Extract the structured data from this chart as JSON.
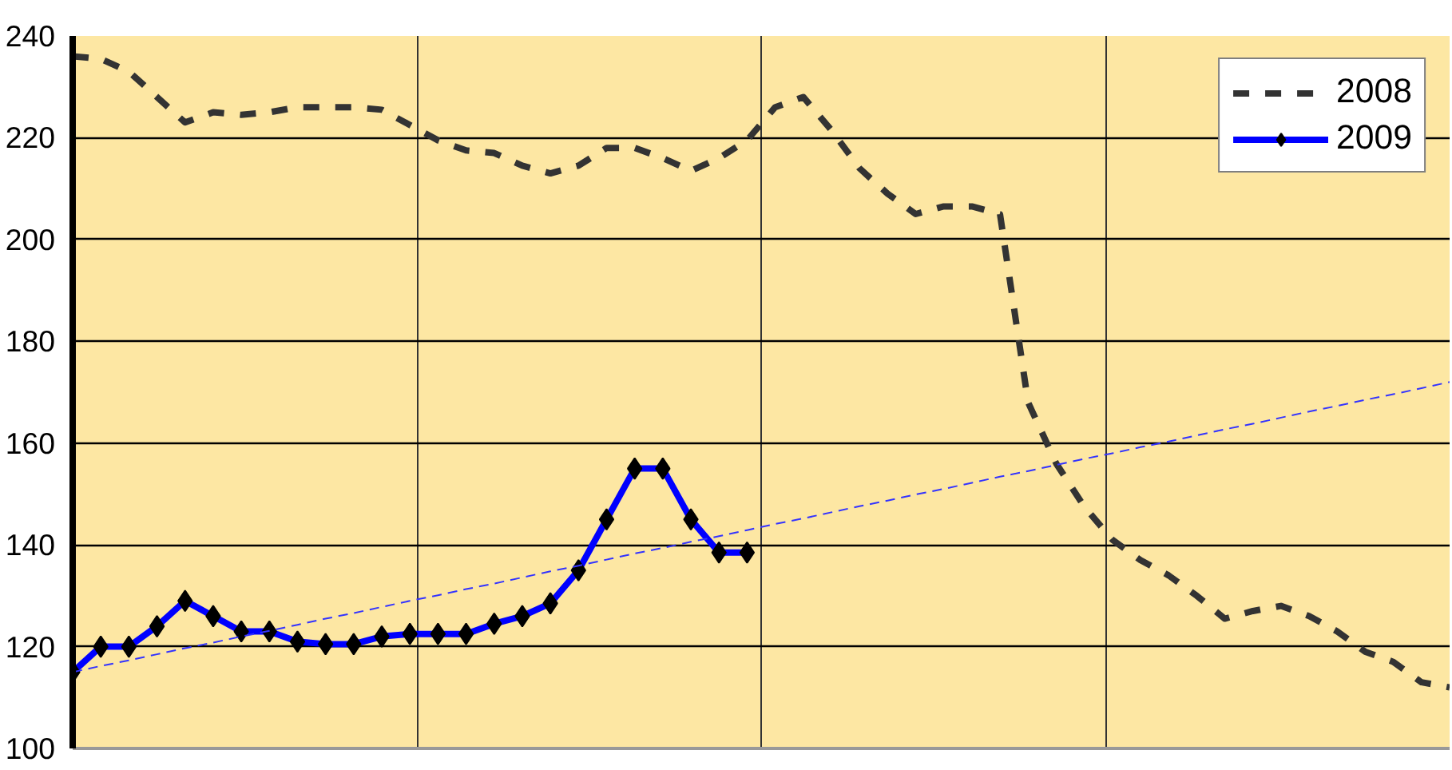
{
  "chart_data": {
    "type": "line",
    "tick_labels": "y",
    "grid": true,
    "legend": "top right",
    "categories": [
      null,
      null,
      null,
      null,
      null,
      null,
      null,
      null,
      null,
      null,
      null,
      null,
      null,
      null,
      null,
      null,
      null,
      null,
      null,
      null,
      null,
      null,
      null,
      null,
      null,
      null,
      null,
      null,
      null,
      null,
      null,
      null,
      null,
      null,
      null,
      null,
      null,
      null,
      null,
      null,
      null,
      null,
      null,
      null,
      null,
      null,
      null,
      null,
      null,
      null
    ],
    "ylim": [
      100,
      240
    ],
    "yticks": [
      100,
      120,
      140,
      160,
      180,
      200,
      220,
      240
    ],
    "series": [
      {
        "name": "2008",
        "color": "#333333",
        "line_style": "dashed",
        "marker": "none",
        "values": [
          236,
          235.5,
          233,
          228,
          223,
          225,
          224.5,
          225,
          226,
          226,
          226,
          225.5,
          222.5,
          219.5,
          217.5,
          217,
          214.5,
          213,
          214.5,
          218,
          218,
          216,
          213.5,
          216,
          219.5,
          226,
          228,
          221.5,
          214,
          209,
          205,
          206.5,
          206.5,
          205,
          168,
          156,
          147.5,
          141,
          137,
          134,
          130,
          125.5,
          127,
          128,
          126,
          123,
          119,
          117,
          113,
          112
        ]
      },
      {
        "name": "2009",
        "color": "#0000ff",
        "line_style": "solid",
        "marker": "diamond",
        "values": [
          115,
          120,
          120,
          124,
          129,
          126,
          123,
          123,
          121,
          120.5,
          120.5,
          122,
          122.5,
          122.5,
          122.5,
          124.5,
          126,
          128.5,
          135,
          145,
          155,
          155,
          145,
          138.5,
          138.5,
          null,
          null,
          null,
          null,
          null,
          null,
          null,
          null,
          null,
          null,
          null,
          null,
          null,
          null,
          null,
          null,
          null,
          null,
          null,
          null,
          null,
          null,
          null,
          null,
          null
        ]
      },
      {
        "color": "#3333ff",
        "line_style": "dashed",
        "marker": "none",
        "values": [
          115,
          116.2,
          117.3,
          118.5,
          119.7,
          120.8,
          122,
          123.1,
          124.3,
          125.5,
          126.6,
          127.8,
          129,
          130.1,
          131.3,
          132.4,
          133.6,
          134.8,
          135.9,
          137.1,
          138.3,
          139.4,
          140.6,
          141.7,
          142.9,
          144.1,
          145.2,
          146.4,
          147.6,
          148.7,
          149.9,
          151,
          152.2,
          153.4,
          154.5,
          155.7,
          156.9,
          158,
          159.2,
          160.3,
          161.5,
          162.7,
          163.8,
          165,
          166.2,
          167.3,
          168.5,
          169.6,
          170.8,
          172
        ]
      }
    ]
  }
}
